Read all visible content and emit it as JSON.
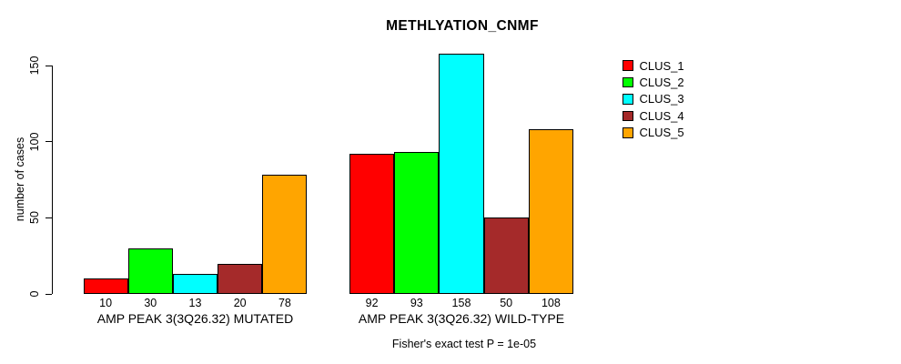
{
  "chart_data": {
    "type": "bar",
    "title": "METHLYATION_CNMF",
    "ylabel": "number of cases",
    "xlabel": "",
    "ylim": [
      0,
      158
    ],
    "yticks": [
      0,
      50,
      100,
      150
    ],
    "grid": false,
    "legend_position": "right",
    "categories": [
      "CLUS_1",
      "CLUS_2",
      "CLUS_3",
      "CLUS_4",
      "CLUS_5"
    ],
    "series": [
      {
        "name": "CLUS_1",
        "color": "#FF0000"
      },
      {
        "name": "CLUS_2",
        "color": "#00FF00"
      },
      {
        "name": "CLUS_3",
        "color": "#00FFFF"
      },
      {
        "name": "CLUS_4",
        "color": "#A52A2A"
      },
      {
        "name": "CLUS_5",
        "color": "#FFA500"
      }
    ],
    "groups": [
      {
        "label": "AMP PEAK 3(3Q26.32) MUTATED",
        "values": [
          10,
          30,
          13,
          20,
          78
        ]
      },
      {
        "label": "AMP PEAK 3(3Q26.32) WILD-TYPE",
        "values": [
          92,
          93,
          158,
          50,
          108
        ]
      }
    ],
    "annotation": "Fisher's exact test P = 1e-05",
    "axis_color": "#000000",
    "background_color": "#FFFFFF"
  }
}
